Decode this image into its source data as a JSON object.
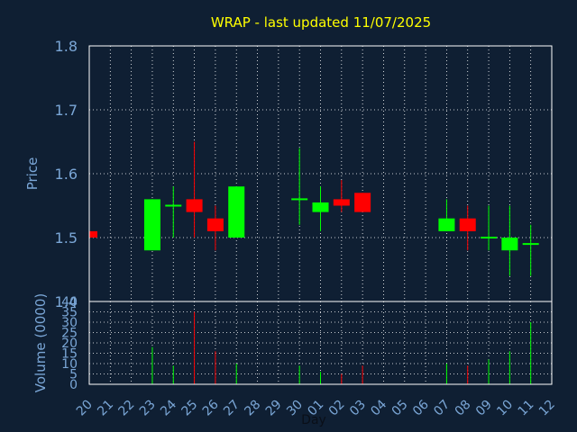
{
  "chart_data": {
    "type": "candlestick",
    "title": "WRAP - last updated 11/07/2025",
    "xlabel": "Day",
    "price_panel": {
      "ylabel": "Price",
      "ylim": [
        1.4,
        1.8
      ],
      "yticks": [
        "1.4",
        "1.5",
        "1.6",
        "1.7",
        "1.8"
      ],
      "grid": true
    },
    "volume_panel": {
      "ylabel": "Volume (0000)",
      "ylim": [
        0,
        40
      ],
      "yticks": [
        "0",
        "5",
        "10",
        "15",
        "20",
        "25",
        "30",
        "35",
        "40"
      ],
      "grid": true
    },
    "x_ticks": [
      "20",
      "21",
      "22",
      "23",
      "24",
      "25",
      "26",
      "27",
      "28",
      "29",
      "30",
      "01",
      "02",
      "03",
      "04",
      "05",
      "06",
      "07",
      "08",
      "09",
      "10",
      "11",
      "12"
    ],
    "candles": [
      {
        "day": "20",
        "open": 1.51,
        "high": 1.51,
        "low": 1.5,
        "close": 1.5,
        "volume": 0.5
      },
      {
        "day": "23",
        "open": 1.48,
        "high": 1.56,
        "low": 1.48,
        "close": 1.56,
        "volume": 18
      },
      {
        "day": "24",
        "open": 1.55,
        "high": 1.58,
        "low": 1.5,
        "close": 1.55,
        "volume": 9
      },
      {
        "day": "25",
        "open": 1.56,
        "high": 1.65,
        "low": 1.5,
        "close": 1.54,
        "volume": 35
      },
      {
        "day": "26",
        "open": 1.53,
        "high": 1.55,
        "low": 1.48,
        "close": 1.51,
        "volume": 16
      },
      {
        "day": "27",
        "open": 1.5,
        "high": 1.58,
        "low": 1.5,
        "close": 1.58,
        "volume": 10
      },
      {
        "day": "30",
        "open": 1.56,
        "high": 1.64,
        "low": 1.52,
        "close": 1.56,
        "volume": 9
      },
      {
        "day": "01",
        "open": 1.54,
        "high": 1.58,
        "low": 1.51,
        "close": 1.555,
        "volume": 6
      },
      {
        "day": "02",
        "open": 1.56,
        "high": 1.59,
        "low": 1.54,
        "close": 1.55,
        "volume": 5
      },
      {
        "day": "03",
        "open": 1.57,
        "high": 1.57,
        "low": 1.54,
        "close": 1.54,
        "volume": 9
      },
      {
        "day": "07",
        "open": 1.51,
        "high": 1.56,
        "low": 1.51,
        "close": 1.53,
        "volume": 10
      },
      {
        "day": "08",
        "open": 1.53,
        "high": 1.55,
        "low": 1.48,
        "close": 1.51,
        "volume": 9
      },
      {
        "day": "09",
        "open": 1.5,
        "high": 1.55,
        "low": 1.48,
        "close": 1.5,
        "volume": 12
      },
      {
        "day": "10",
        "open": 1.48,
        "high": 1.55,
        "low": 1.44,
        "close": 1.5,
        "volume": 16
      },
      {
        "day": "11",
        "open": 1.49,
        "high": 1.52,
        "low": 1.44,
        "close": 1.49,
        "volume": 30
      }
    ],
    "colors": {
      "background": "#0f1f33",
      "up": "#00ff00",
      "down": "#ff0000",
      "grid": "#ffffff",
      "axis": "#ffffff",
      "title": "#ffff00",
      "labels": "#7aa6d6"
    }
  }
}
